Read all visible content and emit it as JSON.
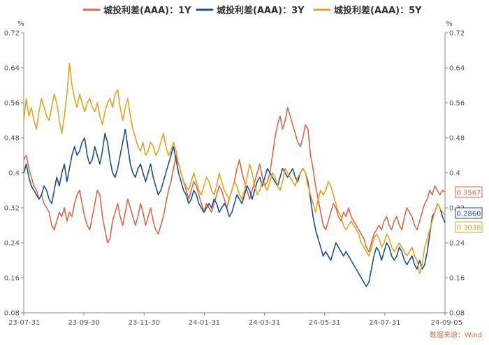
{
  "chart_data": {
    "type": "line",
    "unit_left": "%",
    "unit_right": "%",
    "ylim": [
      0.08,
      0.72
    ],
    "yticks": [
      "0.72",
      "0.64",
      "0.56",
      "0.48",
      "0.4",
      "0.32",
      "0.24",
      "0.16",
      "0.08"
    ],
    "xticks": [
      "23-07-31",
      "23-09-30",
      "23-11-30",
      "24-01-31",
      "24-03-31",
      "24-05-31",
      "24-07-31",
      "24-09-05"
    ],
    "grid": false,
    "legend_position": "top-center",
    "source": "数据来源：Wind",
    "series": [
      {
        "name": "城投利差(AAA)：1Y",
        "color": "#d9694d",
        "end_label": "0.3567",
        "values": [
          0.43,
          0.44,
          0.41,
          0.39,
          0.37,
          0.36,
          0.34,
          0.35,
          0.33,
          0.32,
          0.31,
          0.28,
          0.27,
          0.29,
          0.31,
          0.3,
          0.32,
          0.29,
          0.31,
          0.3,
          0.33,
          0.35,
          0.36,
          0.33,
          0.3,
          0.28,
          0.27,
          0.3,
          0.33,
          0.36,
          0.35,
          0.3,
          0.27,
          0.24,
          0.25,
          0.29,
          0.31,
          0.33,
          0.3,
          0.28,
          0.31,
          0.34,
          0.32,
          0.3,
          0.28,
          0.3,
          0.33,
          0.31,
          0.28,
          0.3,
          0.32,
          0.29,
          0.27,
          0.26,
          0.28,
          0.3,
          0.33,
          0.36,
          0.38,
          0.41,
          0.44,
          0.42,
          0.4,
          0.38,
          0.36,
          0.34,
          0.36,
          0.38,
          0.37,
          0.35,
          0.33,
          0.31,
          0.33,
          0.32,
          0.31,
          0.33,
          0.35,
          0.37,
          0.36,
          0.34,
          0.32,
          0.34,
          0.36,
          0.38,
          0.41,
          0.43,
          0.4,
          0.38,
          0.36,
          0.34,
          0.36,
          0.38,
          0.4,
          0.42,
          0.39,
          0.37,
          0.38,
          0.4,
          0.44,
          0.48,
          0.51,
          0.53,
          0.5,
          0.52,
          0.55,
          0.53,
          0.51,
          0.49,
          0.47,
          0.46,
          0.48,
          0.51,
          0.5,
          0.44,
          0.41,
          0.37,
          0.34,
          0.31,
          0.28,
          0.27,
          0.29,
          0.31,
          0.33,
          0.32,
          0.3,
          0.29,
          0.31,
          0.3,
          0.32,
          0.3,
          0.29,
          0.28,
          0.27,
          0.26,
          0.25,
          0.23,
          0.22,
          0.24,
          0.26,
          0.27,
          0.28,
          0.27,
          0.29,
          0.3,
          0.28,
          0.27,
          0.29,
          0.3,
          0.28,
          0.27,
          0.3,
          0.32,
          0.31,
          0.3,
          0.28,
          0.27,
          0.29,
          0.31,
          0.33,
          0.34,
          0.36,
          0.35,
          0.37,
          0.36,
          0.35,
          0.36,
          0.3567
        ]
      },
      {
        "name": "城投利差(AAA)：3Y",
        "color": "#1f4e8c",
        "end_label": "0.2860",
        "values": [
          0.4,
          0.42,
          0.39,
          0.37,
          0.36,
          0.35,
          0.34,
          0.35,
          0.37,
          0.36,
          0.34,
          0.33,
          0.36,
          0.39,
          0.37,
          0.4,
          0.42,
          0.38,
          0.41,
          0.44,
          0.46,
          0.44,
          0.45,
          0.47,
          0.48,
          0.44,
          0.42,
          0.43,
          0.46,
          0.44,
          0.42,
          0.45,
          0.49,
          0.47,
          0.43,
          0.4,
          0.39,
          0.41,
          0.44,
          0.47,
          0.5,
          0.46,
          0.42,
          0.4,
          0.39,
          0.41,
          0.42,
          0.4,
          0.38,
          0.4,
          0.42,
          0.39,
          0.37,
          0.35,
          0.36,
          0.38,
          0.4,
          0.42,
          0.44,
          0.46,
          0.43,
          0.4,
          0.38,
          0.36,
          0.35,
          0.33,
          0.34,
          0.36,
          0.35,
          0.33,
          0.32,
          0.31,
          0.32,
          0.33,
          0.32,
          0.34,
          0.33,
          0.31,
          0.32,
          0.33,
          0.32,
          0.3,
          0.31,
          0.33,
          0.35,
          0.34,
          0.33,
          0.35,
          0.37,
          0.36,
          0.34,
          0.36,
          0.38,
          0.39,
          0.37,
          0.39,
          0.41,
          0.4,
          0.39,
          0.38,
          0.37,
          0.39,
          0.41,
          0.4,
          0.39,
          0.4,
          0.41,
          0.39,
          0.38,
          0.4,
          0.41,
          0.4,
          0.38,
          0.34,
          0.3,
          0.27,
          0.25,
          0.23,
          0.21,
          0.22,
          0.21,
          0.2,
          0.22,
          0.24,
          0.23,
          0.22,
          0.21,
          0.22,
          0.21,
          0.2,
          0.19,
          0.18,
          0.17,
          0.16,
          0.15,
          0.14,
          0.15,
          0.18,
          0.21,
          0.23,
          0.22,
          0.2,
          0.22,
          0.24,
          0.23,
          0.21,
          0.2,
          0.21,
          0.23,
          0.22,
          0.2,
          0.19,
          0.2,
          0.21,
          0.19,
          0.18,
          0.2,
          0.18,
          0.19,
          0.22,
          0.26,
          0.3,
          0.31,
          0.33,
          0.32,
          0.3,
          0.286
        ]
      },
      {
        "name": "城投利差(AAA)：5Y",
        "color": "#e0a526",
        "end_label": "0.3038",
        "values": [
          0.52,
          0.57,
          0.53,
          0.55,
          0.52,
          0.5,
          0.54,
          0.57,
          0.55,
          0.53,
          0.52,
          0.55,
          0.58,
          0.56,
          0.52,
          0.49,
          0.53,
          0.58,
          0.65,
          0.6,
          0.57,
          0.55,
          0.58,
          0.56,
          0.54,
          0.56,
          0.57,
          0.55,
          0.54,
          0.56,
          0.53,
          0.51,
          0.54,
          0.56,
          0.57,
          0.55,
          0.58,
          0.59,
          0.55,
          0.52,
          0.55,
          0.57,
          0.53,
          0.5,
          0.48,
          0.46,
          0.45,
          0.47,
          0.44,
          0.45,
          0.47,
          0.46,
          0.44,
          0.45,
          0.47,
          0.49,
          0.46,
          0.44,
          0.45,
          0.47,
          0.45,
          0.42,
          0.4,
          0.38,
          0.37,
          0.36,
          0.38,
          0.4,
          0.38,
          0.36,
          0.35,
          0.37,
          0.39,
          0.38,
          0.36,
          0.35,
          0.37,
          0.4,
          0.38,
          0.36,
          0.35,
          0.34,
          0.36,
          0.38,
          0.37,
          0.35,
          0.34,
          0.36,
          0.39,
          0.42,
          0.4,
          0.37,
          0.35,
          0.36,
          0.38,
          0.37,
          0.36,
          0.38,
          0.4,
          0.39,
          0.37,
          0.36,
          0.38,
          0.41,
          0.4,
          0.39,
          0.38,
          0.37,
          0.39,
          0.4,
          0.41,
          0.4,
          0.37,
          0.35,
          0.33,
          0.31,
          0.34,
          0.36,
          0.35,
          0.36,
          0.38,
          0.37,
          0.35,
          0.33,
          0.31,
          0.3,
          0.28,
          0.27,
          0.28,
          0.29,
          0.28,
          0.27,
          0.26,
          0.24,
          0.23,
          0.22,
          0.21,
          0.23,
          0.25,
          0.26,
          0.25,
          0.23,
          0.24,
          0.26,
          0.25,
          0.23,
          0.22,
          0.23,
          0.24,
          0.23,
          0.22,
          0.21,
          0.22,
          0.23,
          0.21,
          0.2,
          0.17,
          0.19,
          0.23,
          0.25,
          0.27,
          0.29,
          0.31,
          0.33,
          0.32,
          0.31,
          0.3038
        ]
      }
    ]
  }
}
